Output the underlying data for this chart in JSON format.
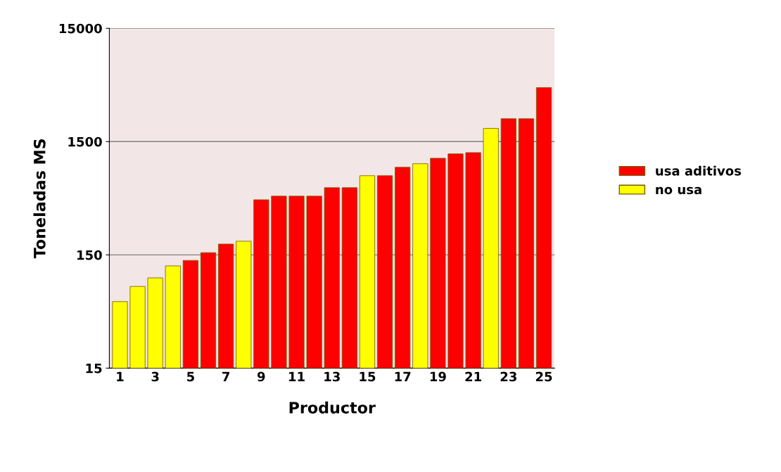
{
  "chart_data": {
    "type": "bar",
    "xlabel": "Productor",
    "ylabel": "Toneladas MS",
    "categories": [
      "1",
      null,
      "3",
      null,
      "5",
      null,
      "7",
      null,
      "9",
      null,
      "11",
      null,
      "13",
      null,
      "15",
      null,
      "17",
      null,
      "19",
      null,
      "21",
      null,
      "23",
      null,
      "25"
    ],
    "series": [
      {
        "name": "usa aditivos",
        "color": "#ff0000",
        "values": [
          null,
          null,
          null,
          null,
          134,
          157,
          187,
          null,
          460,
          495,
          495,
          495,
          588,
          588,
          null,
          750,
          890,
          null,
          1070,
          1170,
          1200,
          null,
          2390,
          2390,
          4500
        ]
      },
      {
        "name": "no usa",
        "color": "#ffff00",
        "values": [
          58,
          79,
          94,
          120,
          null,
          null,
          null,
          198,
          null,
          null,
          null,
          null,
          null,
          null,
          750,
          null,
          null,
          957,
          null,
          null,
          null,
          1960,
          null,
          null,
          null
        ]
      }
    ],
    "log": "y",
    "ylim": [
      15,
      15000
    ],
    "yticks": [
      15,
      150,
      1500,
      15000
    ],
    "grid": "y",
    "legend": "right"
  }
}
